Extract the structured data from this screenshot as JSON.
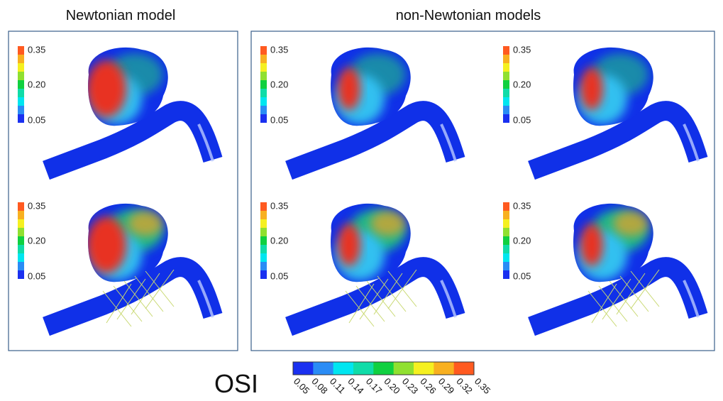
{
  "header": {
    "left_title": "Newtonian model",
    "right_title": "non-Newtonian models"
  },
  "panels": [
    {
      "legend": [
        "0.35",
        "0.20",
        "0.05"
      ]
    },
    {
      "legend": [
        "0.35",
        "0.20",
        "0.05"
      ]
    },
    {
      "legend": [
        "0.35",
        "0.20",
        "0.05"
      ]
    },
    {
      "legend": [
        "0.35",
        "0.20",
        "0.05"
      ]
    },
    {
      "legend": [
        "0.35",
        "0.20",
        "0.05"
      ]
    },
    {
      "legend": [
        "0.35",
        "0.20",
        "0.05"
      ]
    }
  ],
  "colorbar": {
    "label": "OSI",
    "ticks": [
      "0.05",
      "0.08",
      "0.11",
      "0.14",
      "0.17",
      "0.20",
      "0.23",
      "0.26",
      "0.29",
      "0.32",
      "0.35"
    ]
  }
}
